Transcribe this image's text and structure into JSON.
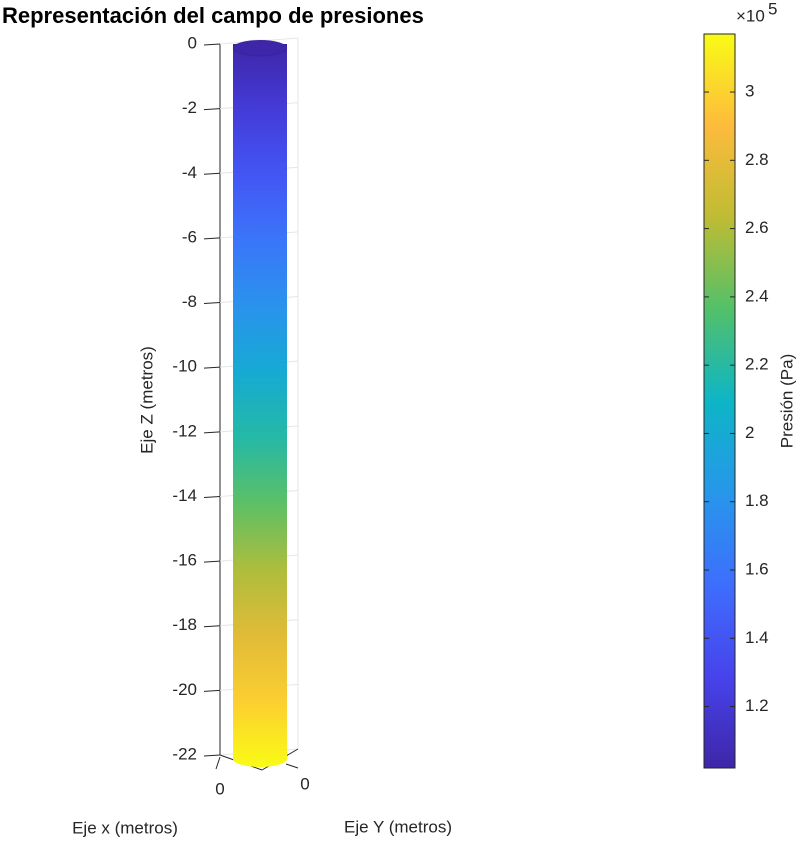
{
  "chart_data": {
    "type": "cylinder",
    "title": "Representación del campo de presiones",
    "x_label": "Eje x (metros)",
    "y_label": "Eje Y (metros)",
    "z_label": "Eje Z (metros)",
    "xticks": [
      0
    ],
    "yticks": [
      0
    ],
    "zlim": [
      -22,
      0
    ],
    "zticks": [
      0,
      -2,
      -4,
      -6,
      -8,
      -10,
      -12,
      -14,
      -16,
      -18,
      -20,
      -22
    ],
    "grid": true,
    "z": [
      0,
      -2,
      -4,
      -6,
      -8,
      -10,
      -12,
      -14,
      -16,
      -18,
      -20,
      -22
    ],
    "pressure": [
      1.02,
      1.21,
      1.41,
      1.61,
      1.8,
      2.0,
      2.19,
      2.39,
      2.59,
      2.78,
      2.98,
      3.17
    ],
    "colormap": [
      "#3e26a8",
      "#4743ec",
      "#3e6efd",
      "#2797ea",
      "#0db5c6",
      "#52c06a",
      "#bfbc33",
      "#fdbb3c",
      "#f9fb15"
    ],
    "colorbar": {
      "label": "Presión (Pa)",
      "multiplier": "×10",
      "exponent": 5,
      "clim": [
        1.02,
        3.17
      ],
      "ticks": [
        1.2,
        1.4,
        1.6,
        1.8,
        2,
        2.2,
        2.4,
        2.6,
        2.8,
        3
      ]
    }
  }
}
